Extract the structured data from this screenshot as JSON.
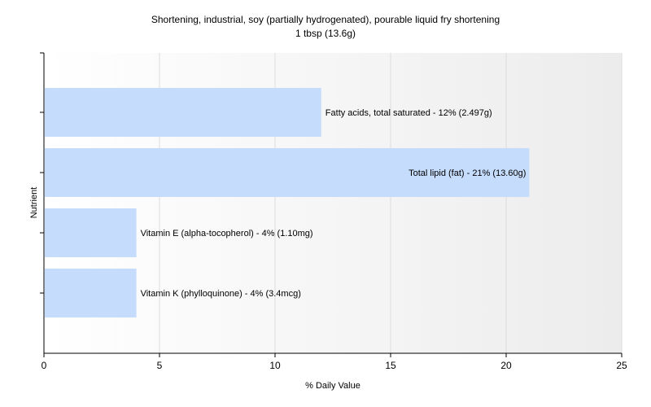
{
  "chart_data": {
    "type": "bar",
    "orientation": "horizontal",
    "title": "Shortening, industrial, soy (partially hydrogenated), pourable liquid fry shortening",
    "subtitle": "1 tbsp (13.6g)",
    "xlabel": "% Daily Value",
    "ylabel": "Nutrient",
    "xlim": [
      0,
      25
    ],
    "xticks": [
      0,
      5,
      10,
      15,
      20,
      25
    ],
    "grid": true,
    "bar_color": "#c6dcfc",
    "categories": [
      "Fatty acids, total saturated",
      "Total lipid (fat)",
      "Vitamin E (alpha-tocopherol)",
      "Vitamin K (phylloquinone)"
    ],
    "values": [
      12,
      21,
      4,
      4
    ],
    "labels": [
      "Fatty acids, total saturated - 12% (2.497g)",
      "Total lipid (fat) - 21% (13.60g)",
      "Vitamin E (alpha-tocopherol) - 4% (1.10mg)",
      "Vitamin K (phylloquinone) - 4% (3.4mcg)"
    ]
  }
}
